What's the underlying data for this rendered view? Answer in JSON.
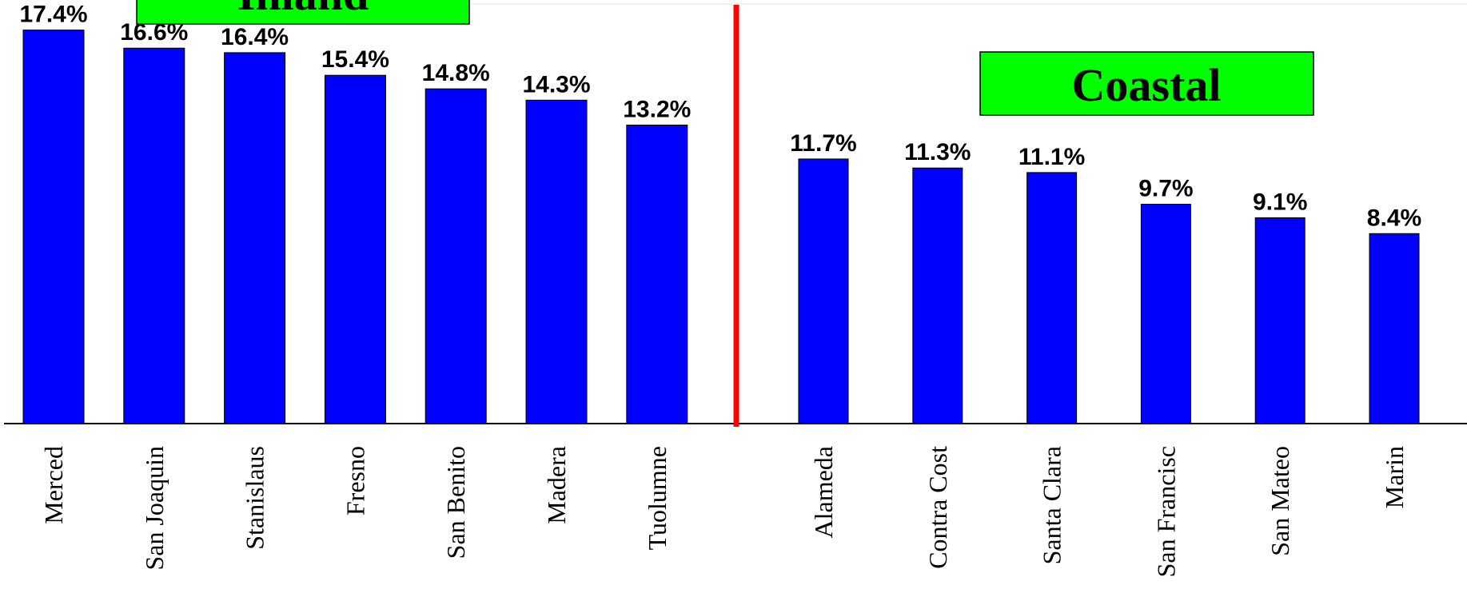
{
  "chart_data": {
    "type": "bar",
    "categories": [
      "Merced",
      "San Joaquin",
      "Stanislaus",
      "Fresno",
      "San Benito",
      "Madera",
      "Tuolumne",
      "Alameda",
      "Contra Cost",
      "Santa Clara",
      "San Francisc",
      "San Mateo",
      "Marin"
    ],
    "values": [
      17.4,
      16.6,
      16.4,
      15.4,
      14.8,
      14.3,
      13.2,
      11.7,
      11.3,
      11.1,
      9.7,
      9.1,
      8.4
    ],
    "data_labels": [
      "17.4%",
      "16.6%",
      "16.4%",
      "15.4%",
      "14.8%",
      "14.3%",
      "13.2%",
      "11.7%",
      "11.3%",
      "11.1%",
      "9.7%",
      "9.1%",
      "8.4%"
    ],
    "groups": [
      {
        "label": "Inland",
        "count": 7
      },
      {
        "label": "Coastal",
        "count": 6
      }
    ],
    "ylim": [
      0,
      20
    ],
    "grid": false,
    "legend": "none",
    "colors": {
      "bar": "#0000FF",
      "bar_outline": "#000000",
      "divider": "#FF0000",
      "group_box": "#00FF00"
    }
  }
}
